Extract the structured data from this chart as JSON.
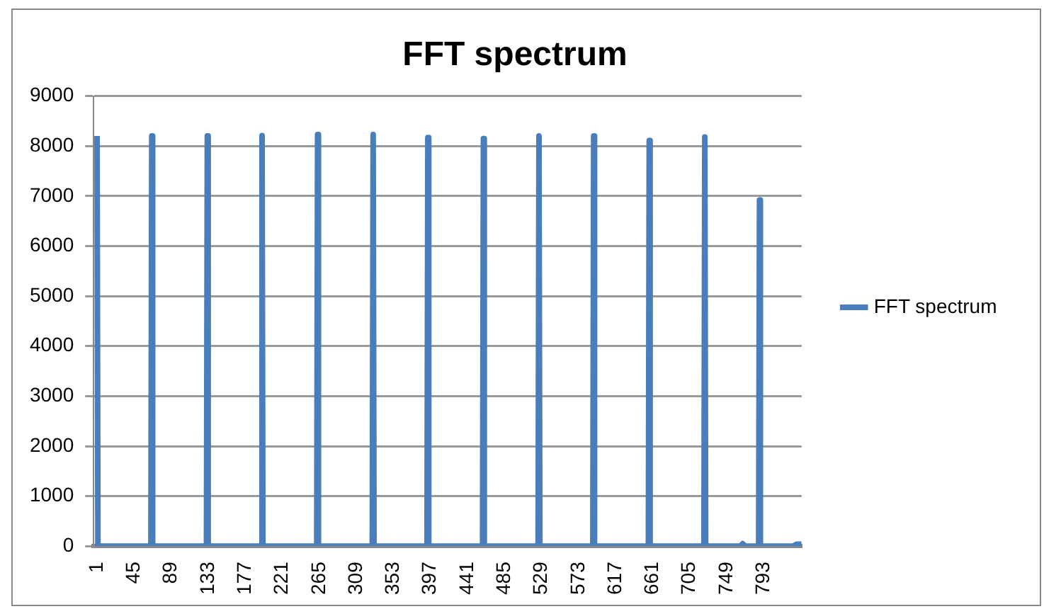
{
  "chart_data": {
    "type": "line",
    "title": "FFT spectrum",
    "x": [
      1,
      2,
      65,
      66,
      67,
      131,
      132,
      133,
      196,
      197,
      198,
      262,
      263,
      264,
      328,
      329,
      330,
      393,
      394,
      395,
      459,
      460,
      461,
      525,
      526,
      527,
      590,
      591,
      592,
      656,
      657,
      658,
      722,
      723,
      724,
      765,
      768,
      771,
      787,
      788,
      789,
      828,
      832,
      838
    ],
    "series": [
      {
        "name": "FFT spectrum",
        "color": "#4a7ebb",
        "values": [
          8200,
          0,
          0,
          8200,
          0,
          0,
          8200,
          0,
          0,
          8210,
          0,
          0,
          8230,
          0,
          0,
          8230,
          0,
          0,
          8170,
          0,
          0,
          8150,
          0,
          0,
          8200,
          0,
          0,
          8200,
          0,
          0,
          8110,
          0,
          0,
          8180,
          0,
          0,
          50,
          0,
          0,
          6920,
          0,
          0,
          40,
          40
        ]
      }
    ],
    "xlim": [
      -3,
      838
    ],
    "xticks": [
      1,
      45,
      89,
      133,
      177,
      221,
      265,
      309,
      353,
      397,
      441,
      485,
      529,
      573,
      617,
      661,
      705,
      749,
      793
    ],
    "ylim": [
      0,
      9000
    ],
    "yticks": [
      0,
      1000,
      2000,
      3000,
      4000,
      5000,
      6000,
      7000,
      8000,
      9000
    ],
    "grid": "y",
    "legend": "right",
    "marker": "none",
    "line_style": "solid"
  }
}
